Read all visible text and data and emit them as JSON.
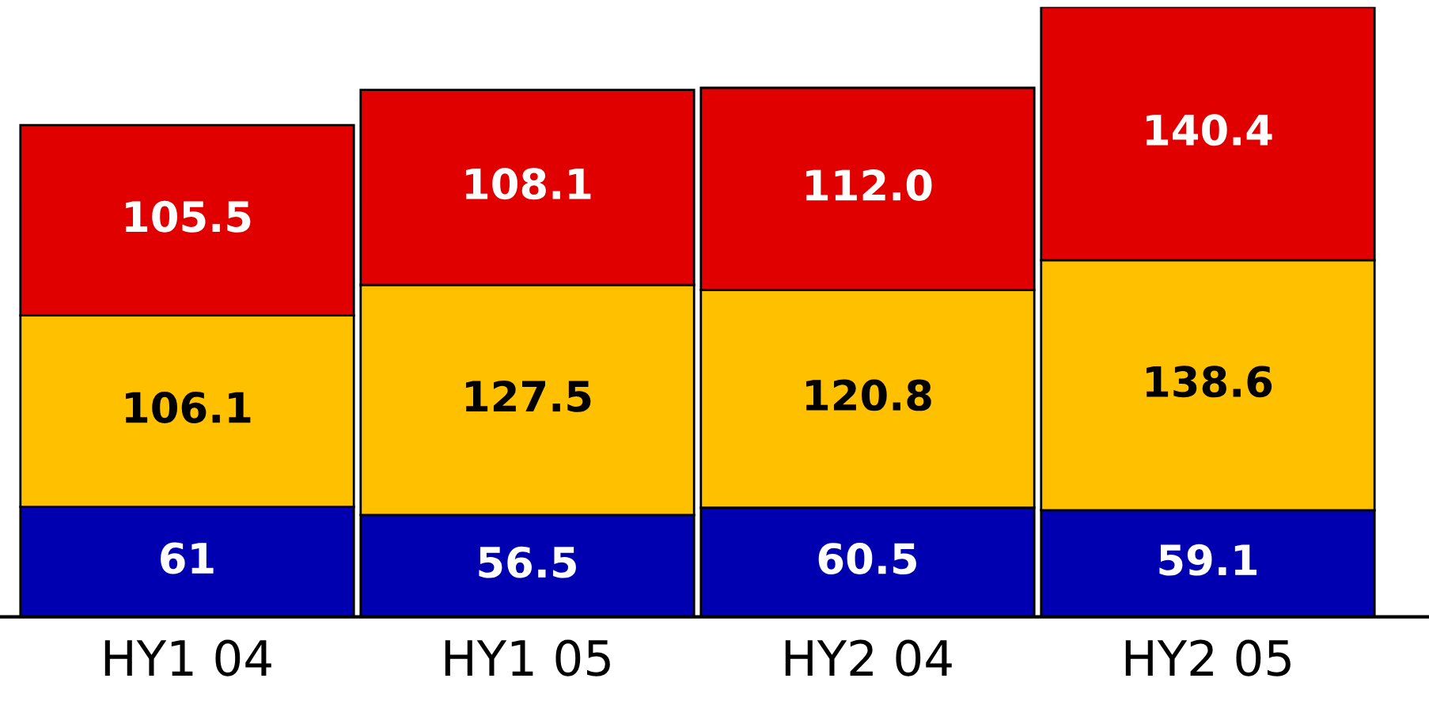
{
  "chart_data": {
    "type": "bar",
    "stacked": true,
    "data_labels": true,
    "tick_labels": "x",
    "grid": false,
    "legend": false,
    "categories": [
      "HY1 04",
      "HY1 05",
      "HY2 04",
      "HY2 05"
    ],
    "series": [
      {
        "color": "#0000b0",
        "values": [
          61,
          56.5,
          60.5,
          59.1
        ],
        "value_labels": [
          "61",
          "56.5",
          "60.5",
          "59.1"
        ]
      },
      {
        "color": "#ffc000",
        "values": [
          106.1,
          127.5,
          120.8,
          138.6
        ],
        "value_labels": [
          "106.1",
          "127.5",
          "120.8",
          "138.6"
        ]
      },
      {
        "color": "#e00000",
        "values": [
          105.5,
          108.1,
          112.0,
          140.4
        ],
        "value_labels": [
          "105.5",
          "108.1",
          "112.0",
          "140.4"
        ]
      }
    ]
  }
}
